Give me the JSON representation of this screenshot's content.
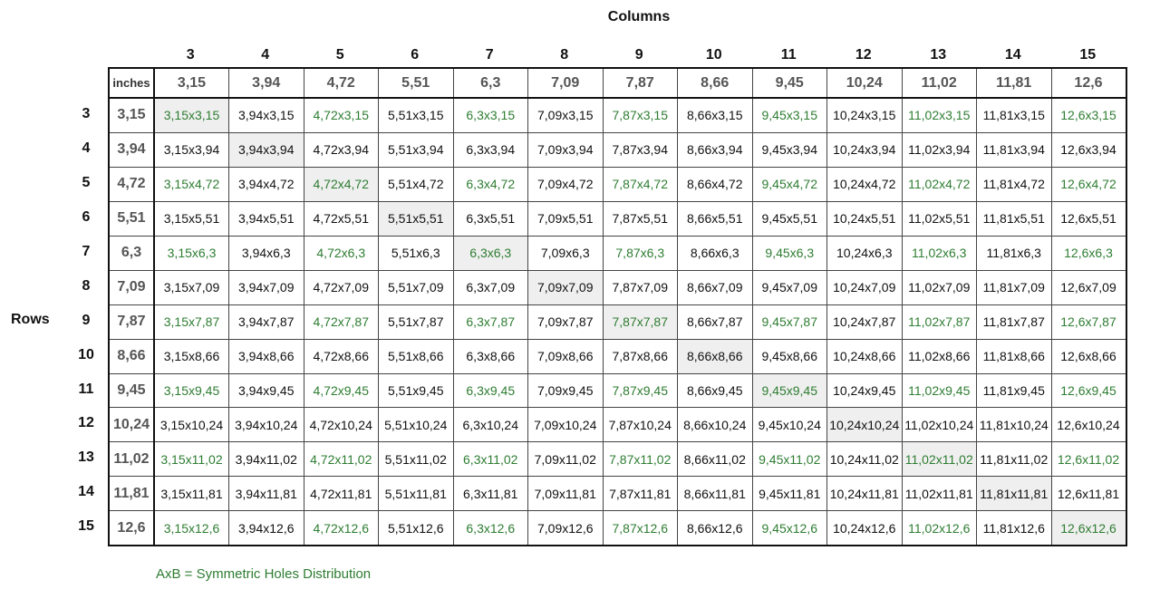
{
  "titles": {
    "columns": "Columns",
    "rows": "Rows",
    "units": "inches"
  },
  "colors": {
    "symmetric": "#2e7d32",
    "diagonal_fill": "#efefef",
    "text": "#111111"
  },
  "column_numbers": [
    "3",
    "4",
    "5",
    "6",
    "7",
    "8",
    "9",
    "10",
    "11",
    "12",
    "13",
    "14",
    "15"
  ],
  "column_inches": [
    "3,15",
    "3,94",
    "4,72",
    "5,51",
    "6,3",
    "7,09",
    "7,87",
    "8,66",
    "9,45",
    "10,24",
    "11,02",
    "11,81",
    "12,6"
  ],
  "row_numbers": [
    "3",
    "4",
    "5",
    "6",
    "7",
    "8",
    "9",
    "10",
    "11",
    "12",
    "13",
    "14",
    "15"
  ],
  "row_inches": [
    "3,15",
    "3,94",
    "4,72",
    "5,51",
    "6,3",
    "7,09",
    "7,87",
    "8,66",
    "9,45",
    "10,24",
    "11,02",
    "11,81",
    "12,6"
  ],
  "legend": "AxB = Symmetric Holes Distribution"
}
